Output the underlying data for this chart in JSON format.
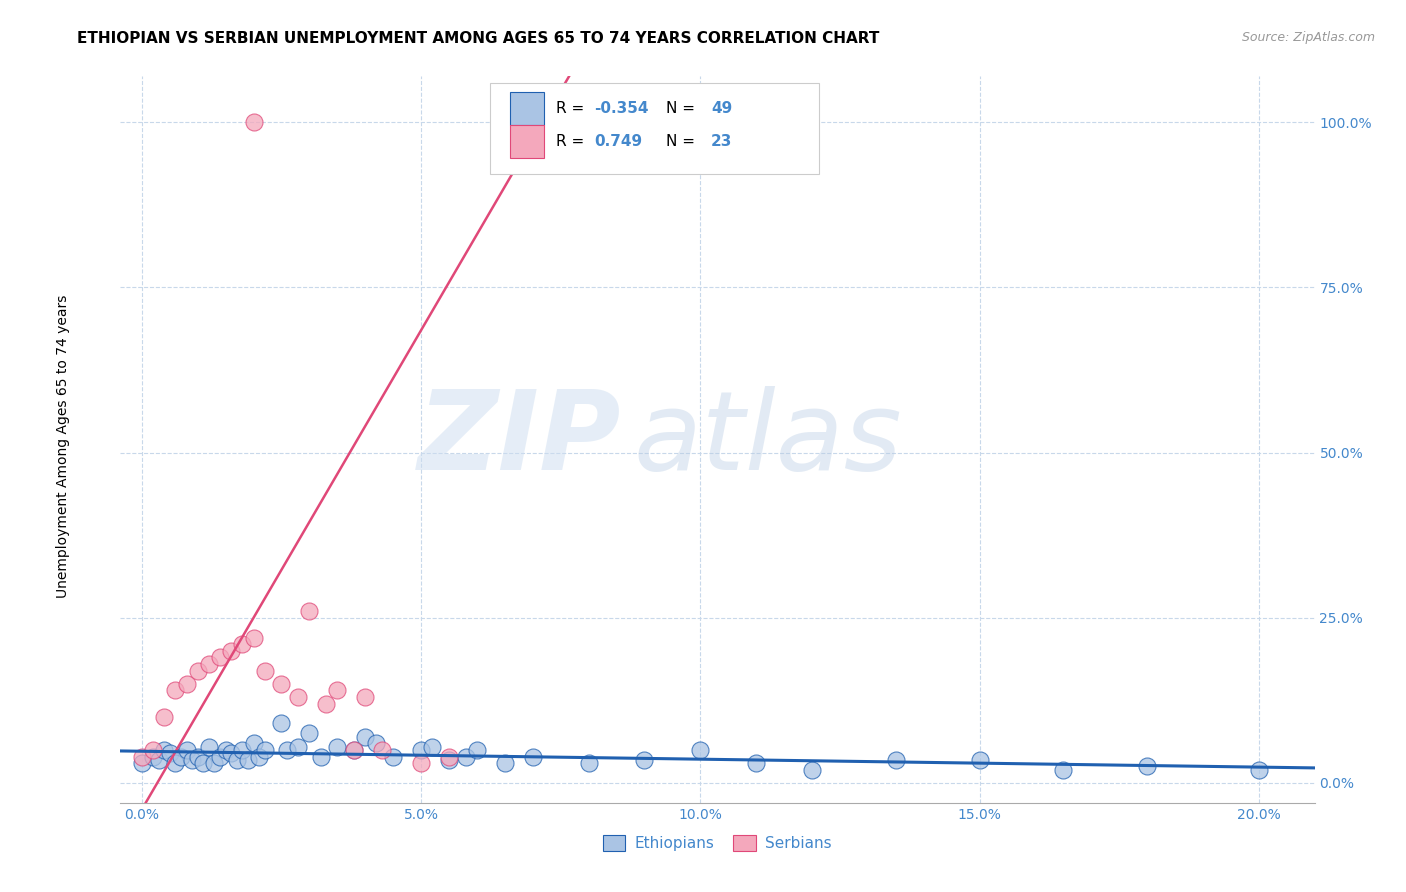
{
  "title": "ETHIOPIAN VS SERBIAN UNEMPLOYMENT AMONG AGES 65 TO 74 YEARS CORRELATION CHART",
  "source": "Source: ZipAtlas.com",
  "xlabel_vals": [
    0.0,
    5.0,
    10.0,
    15.0,
    20.0
  ],
  "ylabel_vals": [
    0.0,
    25.0,
    50.0,
    75.0,
    100.0
  ],
  "xlim": [
    -0.4,
    21.0
  ],
  "ylim": [
    -3.0,
    107.0
  ],
  "ethiopian_color": "#aac4e4",
  "serbian_color": "#f4a8bc",
  "ethiopian_line_color": "#2060b0",
  "serbian_line_color": "#e04878",
  "watermark_zip": "ZIP",
  "watermark_atlas": "atlas",
  "legend_r_ethiopian": "-0.354",
  "legend_n_ethiopian": "49",
  "legend_r_serbian": "0.749",
  "legend_n_serbian": "23",
  "ethiopians_x": [
    0.0,
    0.2,
    0.3,
    0.4,
    0.5,
    0.6,
    0.7,
    0.8,
    0.9,
    1.0,
    1.1,
    1.2,
    1.3,
    1.4,
    1.5,
    1.6,
    1.7,
    1.8,
    1.9,
    2.0,
    2.1,
    2.2,
    2.5,
    2.6,
    2.8,
    3.0,
    3.2,
    3.5,
    3.8,
    4.0,
    4.2,
    4.5,
    5.0,
    5.2,
    5.5,
    5.8,
    6.0,
    6.5,
    7.0,
    8.0,
    9.0,
    10.0,
    11.0,
    12.0,
    13.5,
    15.0,
    16.5,
    18.0,
    20.0
  ],
  "ethiopians_y": [
    3.0,
    4.0,
    3.5,
    5.0,
    4.5,
    3.0,
    4.0,
    5.0,
    3.5,
    4.0,
    3.0,
    5.5,
    3.0,
    4.0,
    5.0,
    4.5,
    3.5,
    5.0,
    3.5,
    6.0,
    4.0,
    5.0,
    9.0,
    5.0,
    5.5,
    7.5,
    4.0,
    5.5,
    5.0,
    7.0,
    6.0,
    4.0,
    5.0,
    5.5,
    3.5,
    4.0,
    5.0,
    3.0,
    4.0,
    3.0,
    3.5,
    5.0,
    3.0,
    2.0,
    3.5,
    3.5,
    2.0,
    2.5,
    2.0
  ],
  "serbians_x": [
    0.0,
    0.2,
    0.4,
    0.6,
    0.8,
    1.0,
    1.2,
    1.4,
    1.6,
    1.8,
    2.0,
    2.2,
    2.5,
    2.8,
    3.0,
    3.3,
    3.5,
    3.8,
    4.0,
    4.3,
    5.0,
    5.5,
    2.0
  ],
  "serbians_y": [
    4.0,
    5.0,
    10.0,
    14.0,
    15.0,
    17.0,
    18.0,
    19.0,
    20.0,
    21.0,
    22.0,
    17.0,
    15.0,
    13.0,
    26.0,
    12.0,
    14.0,
    5.0,
    13.0,
    5.0,
    3.0,
    4.0,
    100.0
  ],
  "background_color": "#ffffff",
  "grid_color": "#c8d8ea",
  "title_fontsize": 11,
  "axis_label_fontsize": 10,
  "tick_fontsize": 10,
  "legend_fontsize": 11,
  "tick_color": "#4488cc"
}
